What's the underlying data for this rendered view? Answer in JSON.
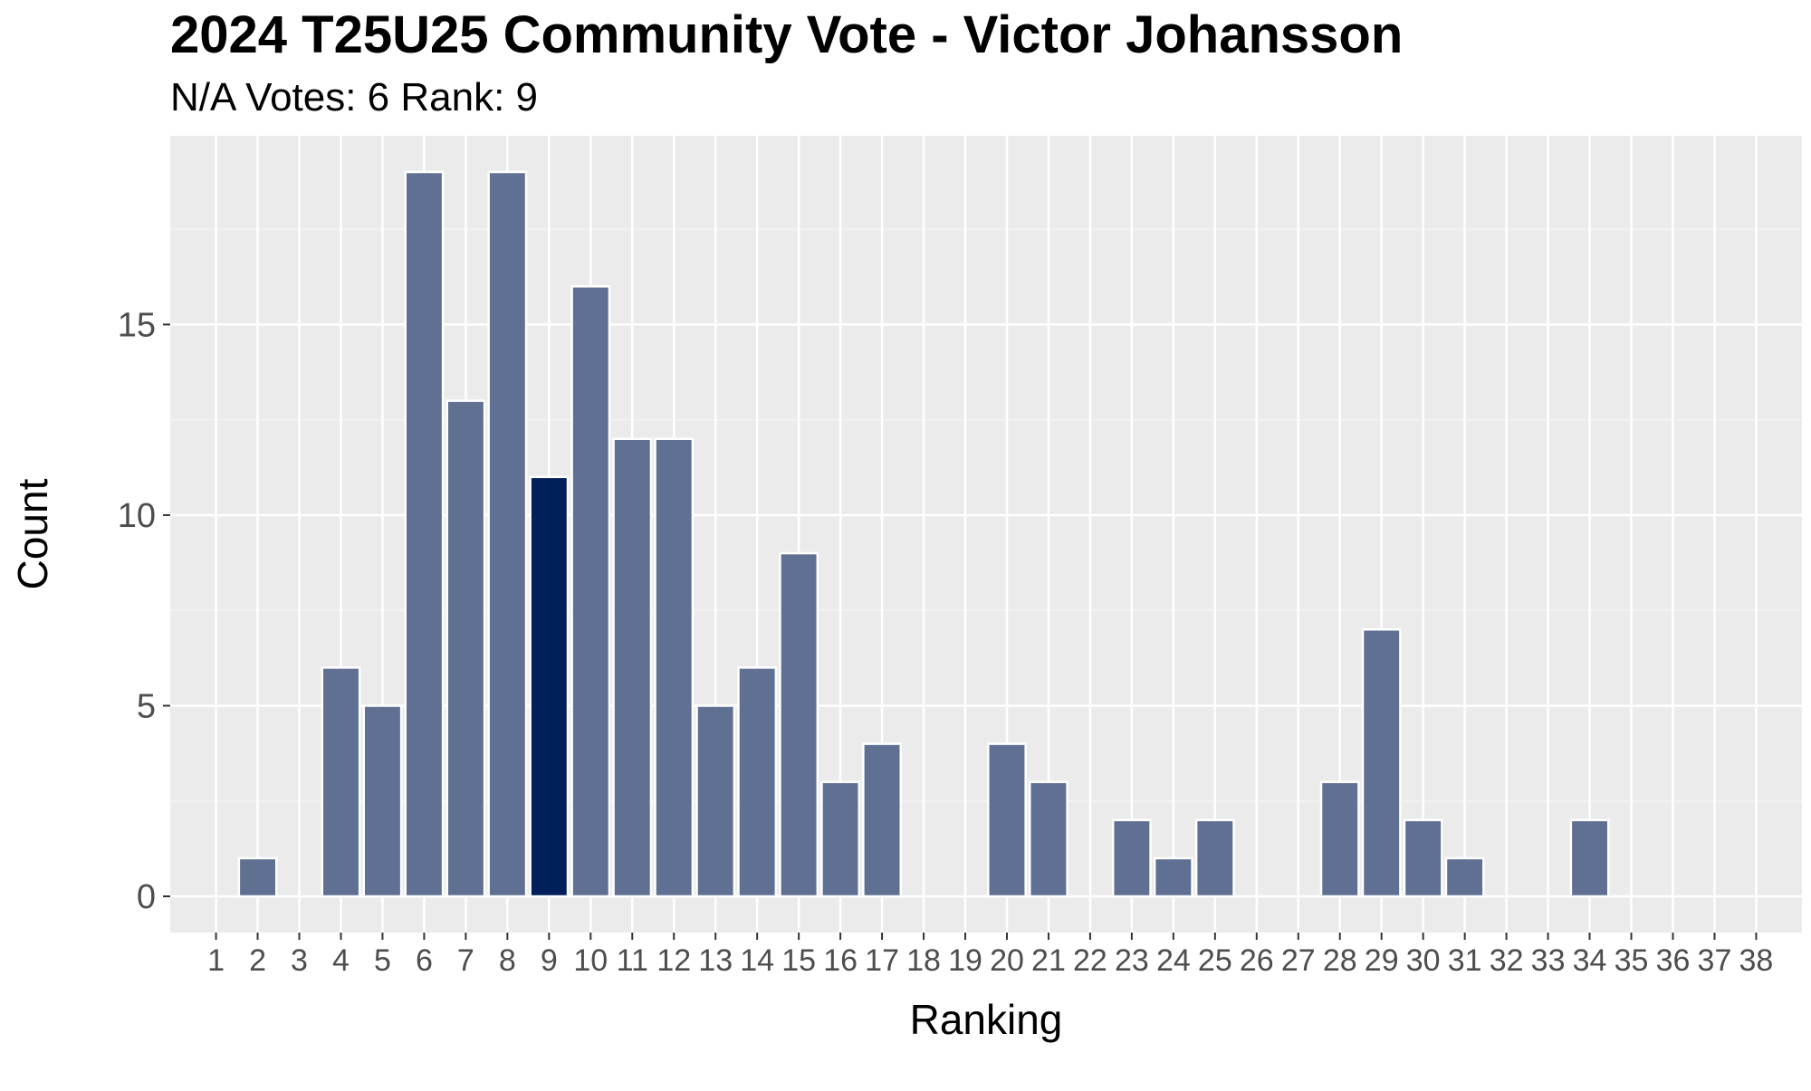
{
  "chart_data": {
    "type": "bar",
    "title": "2024 T25U25 Community Vote - Victor Johansson",
    "subtitle": "N/A Votes: 6  Rank: 9",
    "xlabel": "Ranking",
    "ylabel": "Count",
    "categories": [
      "1",
      "2",
      "3",
      "4",
      "5",
      "6",
      "7",
      "8",
      "9",
      "10",
      "11",
      "12",
      "13",
      "14",
      "15",
      "16",
      "17",
      "18",
      "19",
      "20",
      "21",
      "22",
      "23",
      "24",
      "25",
      "26",
      "27",
      "28",
      "29",
      "30",
      "31",
      "32",
      "33",
      "34",
      "35",
      "36",
      "37",
      "38"
    ],
    "values": [
      0,
      1,
      0,
      6,
      5,
      19,
      13,
      19,
      11,
      16,
      12,
      12,
      5,
      6,
      9,
      3,
      4,
      0,
      0,
      4,
      3,
      0,
      2,
      1,
      2,
      0,
      0,
      3,
      7,
      2,
      1,
      0,
      0,
      2,
      0,
      0,
      0,
      0
    ],
    "highlight_category": "9",
    "ylim": [
      -0.95,
      19.95
    ],
    "yticks": [
      0,
      5,
      10,
      15
    ],
    "grid": true,
    "legend": "none",
    "colors": {
      "bar": "#5f7093",
      "highlight": "#001f5b",
      "panel": "#ebebeb",
      "grid_major": "#ffffff",
      "grid_minor": "#f4f4f4",
      "bar_outline": "#ffffff"
    }
  }
}
